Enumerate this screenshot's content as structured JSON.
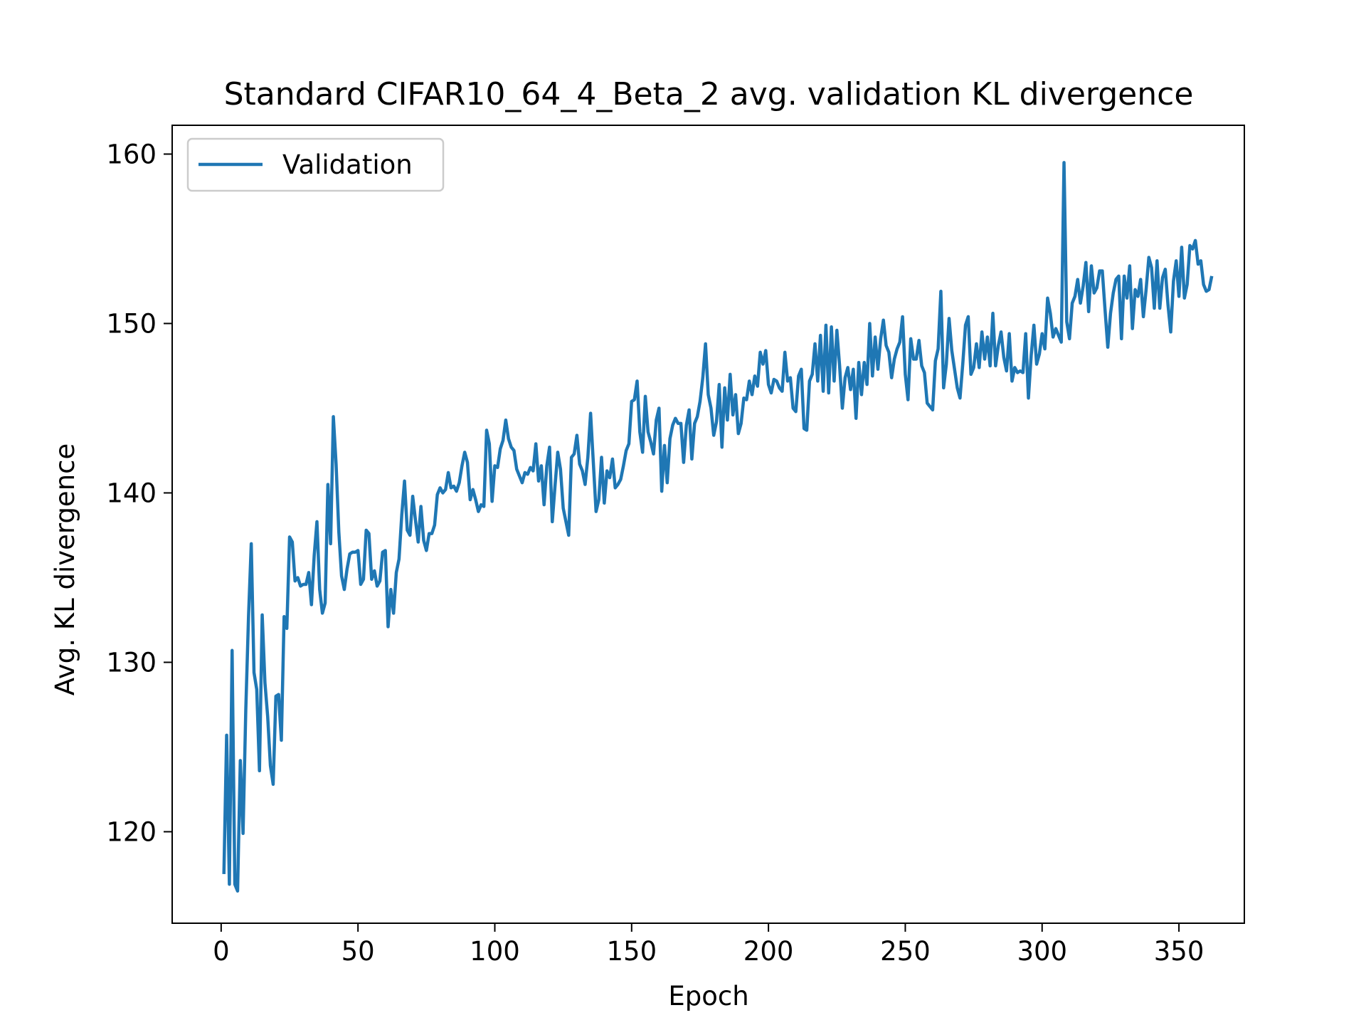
{
  "chart_data": {
    "type": "line",
    "title": "Standard CIFAR10_64_4_Beta_2 avg. validation KL divergence",
    "xlabel": "Epoch",
    "ylabel": "Avg. KL divergence",
    "xlim": [
      -17.9,
      373.9
    ],
    "ylim": [
      114.6,
      161.7
    ],
    "xticks": [
      0,
      50,
      100,
      150,
      200,
      250,
      300,
      350
    ],
    "yticks": [
      120,
      130,
      140,
      150,
      160
    ],
    "grid": false,
    "legend": {
      "position": "top-left",
      "entries": [
        "Validation"
      ]
    },
    "series": [
      {
        "name": "Validation",
        "color": "#1f77b4",
        "x_start": 1,
        "x_step": 1,
        "values": [
          117.5,
          125.7,
          116.9,
          130.7,
          116.9,
          116.5,
          124.2,
          119.9,
          127.2,
          132.7,
          137.0,
          129.4,
          128.4,
          123.6,
          132.8,
          128.8,
          126.8,
          123.9,
          122.8,
          128.0,
          128.1,
          125.4,
          132.7,
          132.0,
          137.4,
          137.1,
          134.8,
          135.0,
          134.5,
          134.6,
          134.6,
          135.3,
          133.4,
          136.3,
          138.3,
          134.3,
          132.9,
          133.5,
          140.5,
          137.0,
          144.5,
          141.7,
          137.7,
          135.1,
          134.3,
          135.5,
          136.4,
          136.5,
          136.5,
          136.6,
          134.6,
          134.9,
          137.8,
          137.6,
          134.9,
          135.4,
          134.5,
          134.8,
          136.5,
          136.6,
          132.1,
          134.3,
          132.9,
          135.3,
          136.1,
          138.7,
          140.7,
          137.8,
          137.5,
          139.8,
          138.4,
          137.1,
          139.2,
          137.2,
          136.6,
          137.6,
          137.6,
          138.1,
          139.9,
          140.3,
          140.0,
          140.2,
          141.2,
          140.3,
          140.4,
          140.1,
          140.6,
          141.6,
          142.4,
          141.8,
          139.6,
          140.2,
          139.6,
          138.9,
          139.3,
          139.2,
          143.7,
          142.9,
          139.5,
          141.6,
          141.5,
          142.6,
          143.1,
          144.3,
          143.2,
          142.7,
          142.5,
          141.4,
          141.0,
          140.6,
          141.2,
          141.1,
          141.5,
          141.3,
          142.9,
          140.7,
          141.6,
          139.3,
          141.6,
          142.7,
          138.3,
          140.4,
          142.4,
          141.4,
          139.1,
          138.3,
          137.5,
          142.1,
          142.3,
          143.4,
          141.7,
          141.3,
          140.5,
          142.1,
          144.7,
          141.8,
          138.9,
          139.6,
          142.1,
          139.4,
          141.3,
          140.9,
          142.0,
          140.3,
          140.5,
          140.8,
          141.6,
          142.5,
          142.9,
          145.4,
          145.5,
          146.6,
          143.6,
          142.4,
          145.7,
          143.6,
          143.0,
          142.3,
          144.3,
          145.0,
          140.1,
          142.8,
          140.6,
          143.2,
          144.0,
          144.4,
          144.1,
          144.1,
          141.8,
          144.0,
          144.9,
          142.0,
          144.1,
          144.5,
          145.4,
          146.8,
          148.8,
          145.8,
          145.0,
          143.4,
          144.2,
          146.4,
          142.7,
          146.2,
          144.3,
          147.0,
          144.6,
          145.8,
          143.5,
          144.1,
          145.6,
          145.5,
          146.6,
          145.8,
          146.9,
          146.3,
          148.3,
          147.6,
          148.4,
          146.4,
          145.9,
          146.7,
          146.6,
          146.2,
          146.0,
          148.3,
          146.6,
          146.8,
          145.0,
          144.8,
          146.9,
          147.3,
          143.8,
          143.7,
          146.6,
          147.0,
          148.8,
          146.6,
          149.3,
          146.0,
          149.9,
          145.9,
          149.8,
          146.6,
          149.6,
          147.5,
          145.0,
          146.8,
          147.4,
          146.1,
          147.3,
          144.4,
          147.7,
          145.8,
          147.7,
          146.4,
          150.0,
          146.9,
          149.2,
          147.3,
          149.1,
          150.2,
          148.7,
          148.3,
          146.8,
          147.9,
          148.5,
          148.9,
          150.4,
          147.0,
          145.5,
          149.1,
          147.9,
          147.9,
          149.0,
          147.5,
          147.1,
          145.3,
          145.1,
          144.9,
          147.8,
          148.5,
          151.9,
          146.2,
          147.6,
          150.3,
          148.4,
          147.3,
          146.2,
          145.6,
          147.6,
          149.9,
          150.4,
          147.0,
          147.4,
          148.8,
          147.4,
          149.5,
          147.9,
          149.2,
          147.5,
          150.6,
          147.5,
          148.7,
          149.5,
          148.0,
          147.2,
          149.4,
          146.6,
          147.4,
          147.1,
          147.2,
          147.1,
          149.4,
          145.6,
          148.1,
          149.9,
          147.6,
          148.2,
          149.4,
          148.5,
          151.5,
          150.6,
          149.2,
          149.7,
          149.3,
          148.9,
          159.5,
          150.1,
          149.1,
          151.2,
          151.6,
          152.6,
          151.2,
          152.2,
          153.6,
          150.7,
          153.4,
          151.8,
          152.1,
          153.1,
          153.1,
          150.8,
          148.6,
          150.6,
          151.8,
          152.6,
          152.8,
          149.1,
          152.8,
          151.5,
          153.4,
          149.7,
          152.0,
          151.6,
          152.6,
          150.4,
          152.0,
          153.9,
          153.3,
          150.9,
          153.7,
          150.9,
          152.7,
          153.2,
          151.1,
          149.5,
          152.5,
          153.7,
          151.6,
          154.5,
          151.5,
          152.3,
          154.6,
          154.4,
          154.9,
          153.5,
          153.7,
          152.3,
          151.9,
          152.0,
          152.8
        ]
      }
    ]
  }
}
